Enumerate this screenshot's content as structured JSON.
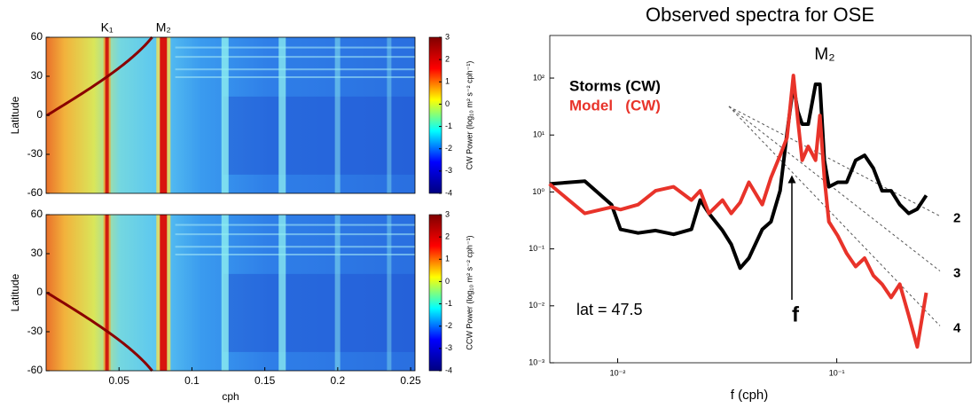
{
  "chart_data": [
    {
      "type": "heatmap",
      "annotations": [
        "K₁",
        "M₂"
      ],
      "ylabel": "Latitude",
      "xlim": [
        0,
        0.253
      ],
      "ylim": [
        -60,
        60
      ],
      "yticks": [
        60,
        30,
        0,
        -30,
        -60
      ],
      "colorbar": {
        "label": "CW Power (log₁₀ m² s⁻² cph⁻¹)",
        "lim": [
          -4,
          3
        ],
        "ticks": [
          3,
          2,
          1,
          0,
          -1,
          -2,
          -3,
          -4
        ],
        "colors": [
          "#800000",
          "#ff0000",
          "#ffff00",
          "#00ffff",
          "#0000ff",
          "#000080"
        ]
      }
    },
    {
      "type": "heatmap",
      "ylabel": "Latitude",
      "xlabel": "cph",
      "xlim": [
        0,
        0.253
      ],
      "ylim": [
        -60,
        60
      ],
      "xticks": [
        0.05,
        0.1,
        0.15,
        0.2,
        0.25
      ],
      "yticks": [
        60,
        30,
        0,
        -30,
        -60
      ],
      "colorbar": {
        "label": "CCW Power (log₁₀ m² s⁻² cph⁻¹)",
        "lim": [
          -4,
          3
        ],
        "ticks": [
          3,
          2,
          1,
          0,
          -1,
          -2,
          -3,
          -4
        ],
        "colors": [
          "#800000",
          "#ff0000",
          "#ffff00",
          "#00ffff",
          "#0000ff",
          "#000080"
        ]
      }
    },
    {
      "type": "line",
      "title": "Observed spectra for OSE",
      "xlabel": "f (cph)",
      "xlog": true,
      "ylog": true,
      "xlim": [
        0.0049,
        0.41
      ],
      "ylim": [
        0.001,
        560
      ],
      "xticks": [
        {
          "value": 0.01,
          "label": "10⁻²"
        },
        {
          "value": 0.1,
          "label": "10⁻¹"
        }
      ],
      "yticks": [
        {
          "value": 100,
          "label": "10²"
        },
        {
          "value": 10,
          "label": "10¹"
        },
        {
          "value": 1,
          "label": "10⁰"
        },
        {
          "value": 0.1,
          "label": "10⁻¹"
        },
        {
          "value": 0.01,
          "label": "10⁻²"
        },
        {
          "value": 0.001,
          "label": "10⁻³"
        }
      ],
      "x": [
        0.00488,
        0.00708,
        0.00937,
        0.0103,
        0.0124,
        0.0149,
        0.018,
        0.0217,
        0.0238,
        0.0261,
        0.0301,
        0.033,
        0.0362,
        0.0397,
        0.0457,
        0.0501,
        0.0551,
        0.0593,
        0.0634,
        0.0664,
        0.0695,
        0.0741,
        0.08,
        0.0838,
        0.0878,
        0.092,
        0.101,
        0.111,
        0.122,
        0.134,
        0.147,
        0.161,
        0.177,
        0.194,
        0.213,
        0.233,
        0.256
      ],
      "series": [
        {
          "name": "Storms (CW)",
          "color": "#000000",
          "values": [
            1.38,
            1.55,
            0.6,
            0.22,
            0.19,
            0.21,
            0.18,
            0.22,
            0.72,
            0.42,
            0.21,
            0.12,
            0.046,
            0.069,
            0.22,
            0.3,
            1.05,
            10.7,
            75,
            26,
            15.5,
            15.5,
            78,
            78,
            3.6,
            1.23,
            1.48,
            1.48,
            3.6,
            4.4,
            2.6,
            1.05,
            1.05,
            0.6,
            0.42,
            0.5,
            0.87
          ]
        },
        {
          "name": "Model   (CW)",
          "color": "#e8332a",
          "values": [
            1.38,
            0.42,
            0.54,
            0.49,
            0.6,
            1.05,
            1.23,
            0.72,
            1.05,
            0.42,
            0.72,
            0.42,
            0.65,
            1.48,
            0.6,
            1.78,
            4.4,
            9,
            111,
            18.5,
            3.6,
            6.3,
            3.6,
            22,
            1.78,
            0.3,
            0.17,
            0.083,
            0.049,
            0.069,
            0.034,
            0.024,
            0.014,
            0.024,
            0.0068,
            0.0019,
            0.017
          ]
        }
      ],
      "annotations": {
        "peak": "M₂",
        "inertial": "f",
        "latitude": "lat = 47.5"
      },
      "slope_labels": [
        2,
        3,
        4
      ]
    }
  ]
}
